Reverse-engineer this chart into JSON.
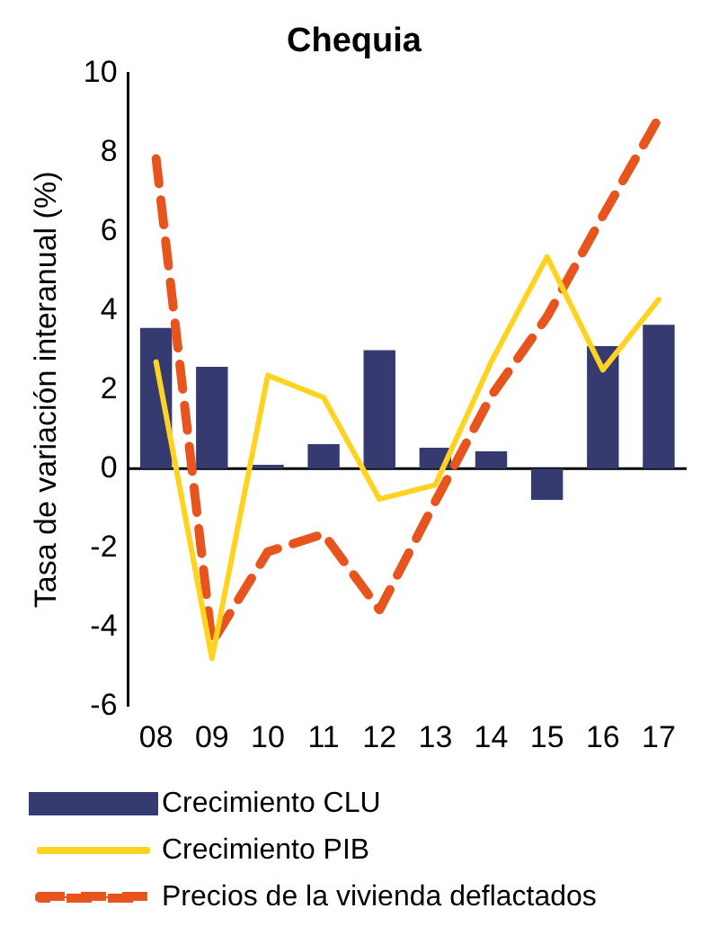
{
  "chart_data": {
    "type": "bar",
    "title": "Chequia",
    "ylabel": "Tasa de variación interanual (%)",
    "categories": [
      "08",
      "09",
      "10",
      "11",
      "12",
      "13",
      "14",
      "15",
      "16",
      "17"
    ],
    "series": [
      {
        "name": "Crecimiento CLU",
        "color": "#353b70",
        "values": [
          3.56,
          2.58,
          0.1,
          0.62,
          3.0,
          0.53,
          0.44,
          -0.79,
          3.1,
          3.64
        ]
      },
      {
        "name": "Crecimiento PIB",
        "type": "line",
        "color": "#ffd320",
        "line_style": "solid",
        "values": [
          2.7,
          -4.8,
          2.36,
          1.8,
          -0.77,
          -0.41,
          2.7,
          5.36,
          2.5,
          4.28
        ]
      },
      {
        "name": "Precios de la vivienda deflactados",
        "type": "line",
        "color": "#e8541e",
        "line_style": "dashed",
        "values": [
          7.84,
          -4.4,
          -2.1,
          -1.65,
          -3.57,
          -0.83,
          1.84,
          3.84,
          6.4,
          8.87
        ]
      }
    ],
    "ylim": [
      -6,
      10
    ],
    "yticks": [
      -6,
      -4,
      -2,
      0,
      2,
      4,
      6,
      8,
      10
    ],
    "grid": false,
    "ref_lines": [
      {
        "axis": "y",
        "value": 0,
        "color": "#000000"
      }
    ],
    "legend": "bottom",
    "marker": "none"
  }
}
